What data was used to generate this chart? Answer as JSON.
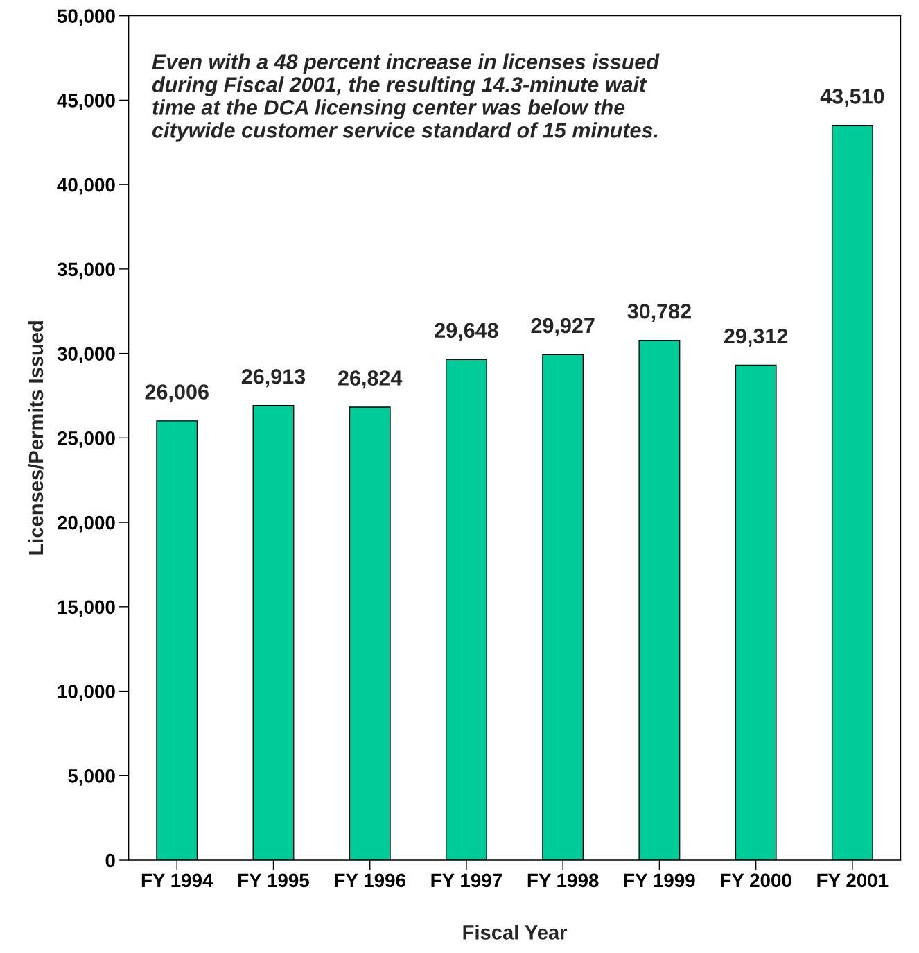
{
  "chart_data": {
    "type": "bar",
    "xlabel": "Fiscal Year",
    "ylabel": "Licenses/Permits Issued",
    "categories": [
      "FY 1994",
      "FY 1995",
      "FY 1996",
      "FY 1997",
      "FY 1998",
      "FY 1999",
      "FY 2000",
      "FY 2001"
    ],
    "values": [
      26006,
      26913,
      26824,
      29648,
      29927,
      30782,
      29312,
      43510
    ],
    "value_labels": [
      "26,006",
      "26,913",
      "26,824",
      "29,648",
      "29,927",
      "30,782",
      "29,312",
      "43,510"
    ],
    "color": "#00cc99",
    "grid": false,
    "ylim": [
      0,
      50000
    ],
    "yticks": [
      {
        "value": 0,
        "label": "0"
      },
      {
        "value": 5000,
        "label": "5,000"
      },
      {
        "value": 10000,
        "label": "10,000"
      },
      {
        "value": 15000,
        "label": "15,000"
      },
      {
        "value": 20000,
        "label": "20,000"
      },
      {
        "value": 25000,
        "label": "25,000"
      },
      {
        "value": 30000,
        "label": "30,000"
      },
      {
        "value": 35000,
        "label": "35,000"
      },
      {
        "value": 40000,
        "label": "40,000"
      },
      {
        "value": 45000,
        "label": "45,000"
      },
      {
        "value": 50000,
        "label": "50,000"
      }
    ],
    "annotations": [
      "Even with a 48 percent increase in licenses issued\nduring Fiscal 2001, the resulting 14.3-minute wait\ntime at the DCA licensing center was below the\ncitywide customer service standard of 15 minutes."
    ]
  }
}
